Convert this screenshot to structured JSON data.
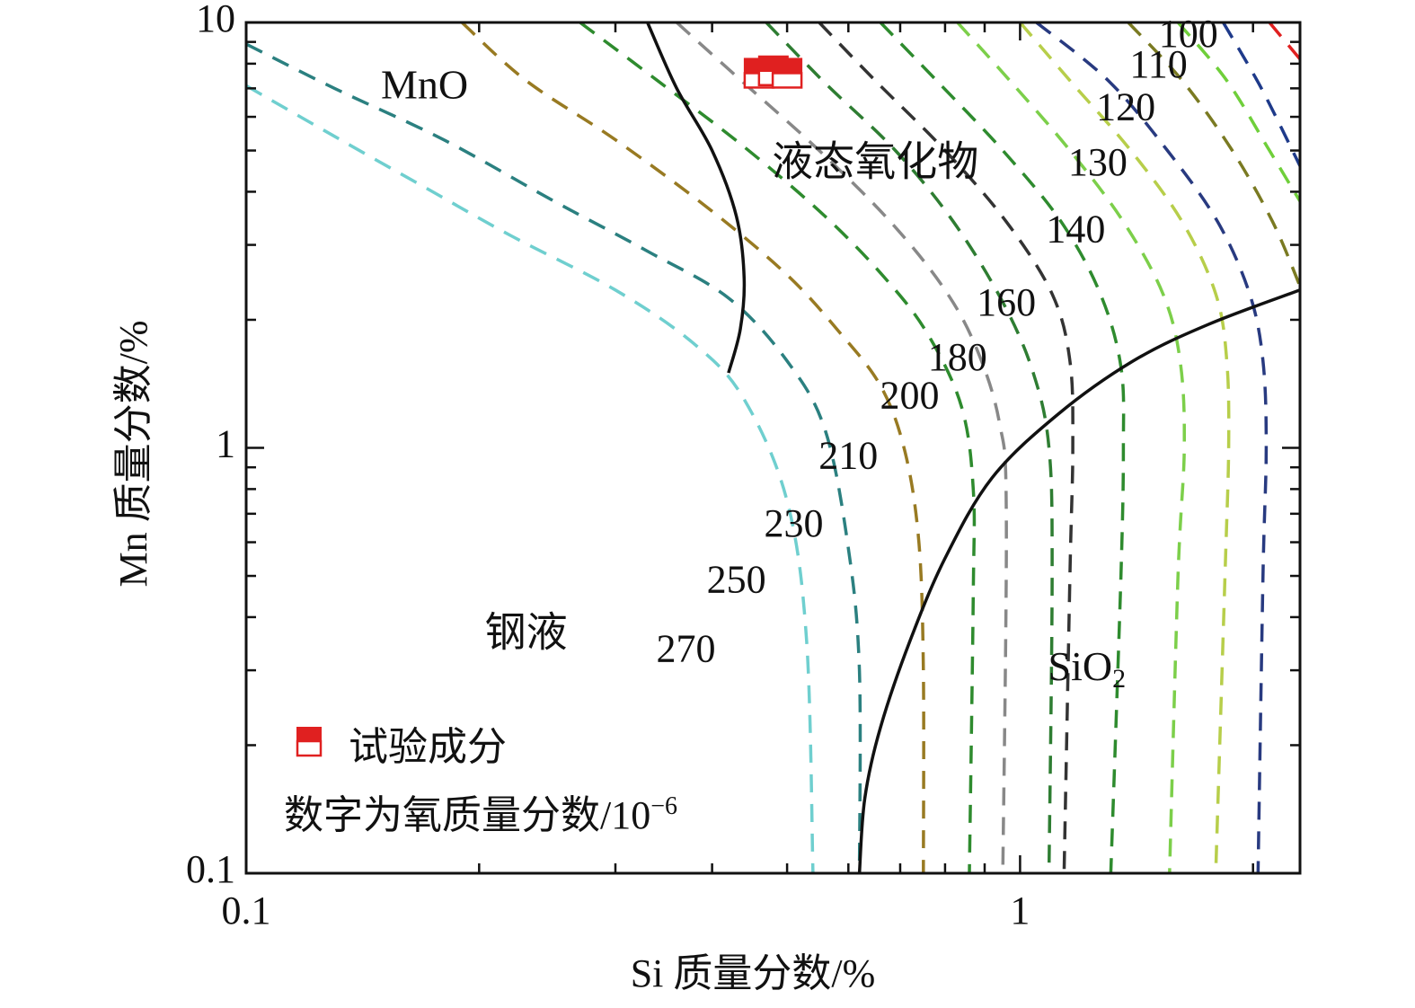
{
  "chart_data": {
    "type": "line",
    "xlabel": "Si 质量分数/%",
    "ylabel": "Mn 质量分数/%",
    "xscale": "log",
    "yscale": "log",
    "xlim": [
      0.1,
      2.3
    ],
    "ylim": [
      0.1,
      10
    ],
    "xticks": [
      {
        "value": 0.1,
        "label": "0.1"
      },
      {
        "value": 1,
        "label": "1"
      }
    ],
    "yticks": [
      {
        "value": 0.1,
        "label": "0.1"
      },
      {
        "value": 1,
        "label": "1"
      },
      {
        "value": 10,
        "label": "10"
      }
    ],
    "region_labels": [
      {
        "key": "mno",
        "text": "MnO",
        "x": 0.17,
        "y": 7.0
      },
      {
        "key": "liquid_oxide",
        "text": "液态氧化物",
        "x": 0.65,
        "y": 4.6
      },
      {
        "key": "steel",
        "text": "钢液",
        "x": 0.23,
        "y": 0.36
      },
      {
        "key": "sio2",
        "text": "SiO",
        "sub": "2",
        "x": 1.22,
        "y": 0.3
      }
    ],
    "boundaries": [
      {
        "key": "mno_liquid",
        "points": [
          [
            0.33,
            10
          ],
          [
            0.36,
            7
          ],
          [
            0.4,
            5
          ],
          [
            0.43,
            3.5
          ],
          [
            0.44,
            2.5
          ],
          [
            0.435,
            1.9
          ],
          [
            0.42,
            1.5
          ]
        ]
      },
      {
        "key": "liquid_sio2",
        "points": [
          [
            0.62,
            0.1
          ],
          [
            0.63,
            0.15
          ],
          [
            0.66,
            0.22
          ],
          [
            0.72,
            0.35
          ],
          [
            0.8,
            0.55
          ],
          [
            0.92,
            0.85
          ],
          [
            1.12,
            1.2
          ],
          [
            1.4,
            1.6
          ],
          [
            1.75,
            1.95
          ],
          [
            2.3,
            2.35
          ]
        ]
      }
    ],
    "series": [
      {
        "label": "270",
        "color": "#6fcfcf",
        "label_at": [
          0.37,
          0.33
        ],
        "points": [
          [
            0.1,
            7.1
          ],
          [
            0.13,
            5.4
          ],
          [
            0.17,
            4.1
          ],
          [
            0.22,
            3.15
          ],
          [
            0.3,
            2.35
          ],
          [
            0.38,
            1.75
          ],
          [
            0.44,
            1.3
          ],
          [
            0.5,
            0.75
          ],
          [
            0.53,
            0.35
          ],
          [
            0.54,
            0.1
          ]
        ]
      },
      {
        "label": "250",
        "color": "#2b8080",
        "label_at": [
          0.43,
          0.48
        ],
        "points": [
          [
            0.1,
            8.9
          ],
          [
            0.13,
            7.0
          ],
          [
            0.18,
            5.3
          ],
          [
            0.25,
            3.8
          ],
          [
            0.33,
            2.9
          ],
          [
            0.42,
            2.25
          ],
          [
            0.5,
            1.6
          ],
          [
            0.56,
            1.1
          ],
          [
            0.6,
            0.58
          ],
          [
            0.62,
            0.3
          ],
          [
            0.62,
            0.1
          ]
        ]
      },
      {
        "label": "230",
        "color": "#987a22",
        "label_at": [
          0.51,
          0.65
        ],
        "points": [
          [
            0.19,
            10
          ],
          [
            0.23,
            7.3
          ],
          [
            0.3,
            5.3
          ],
          [
            0.4,
            3.6
          ],
          [
            0.5,
            2.55
          ],
          [
            0.58,
            1.9
          ],
          [
            0.66,
            1.4
          ],
          [
            0.71,
            0.98
          ],
          [
            0.74,
            0.6
          ],
          [
            0.75,
            0.3
          ],
          [
            0.75,
            0.1
          ]
        ]
      },
      {
        "label": "210",
        "color": "#2e8b2e",
        "label_at": [
          0.6,
          0.94
        ],
        "points": [
          [
            0.27,
            10
          ],
          [
            0.34,
            7.3
          ],
          [
            0.44,
            5.1
          ],
          [
            0.56,
            3.5
          ],
          [
            0.67,
            2.5
          ],
          [
            0.76,
            1.85
          ],
          [
            0.84,
            1.25
          ],
          [
            0.87,
            0.8
          ],
          [
            0.87,
            0.45
          ],
          [
            0.86,
            0.1
          ]
        ]
      },
      {
        "label": "200",
        "color": "#888888",
        "label_at": [
          0.72,
          1.3
        ],
        "points": [
          [
            0.36,
            10
          ],
          [
            0.44,
            7.2
          ],
          [
            0.55,
            5.0
          ],
          [
            0.68,
            3.4
          ],
          [
            0.8,
            2.35
          ],
          [
            0.88,
            1.7
          ],
          [
            0.94,
            1.15
          ],
          [
            0.96,
            0.7
          ],
          [
            0.95,
            0.1
          ]
        ]
      },
      {
        "label": "180",
        "color": "#2e7d32",
        "label_at": [
          0.83,
          1.6
        ],
        "points": [
          [
            0.47,
            10
          ],
          [
            0.56,
            7.2
          ],
          [
            0.69,
            5.0
          ],
          [
            0.82,
            3.4
          ],
          [
            0.95,
            2.2
          ],
          [
            1.04,
            1.5
          ],
          [
            1.09,
            1.0
          ],
          [
            1.1,
            0.5
          ],
          [
            1.09,
            0.1
          ]
        ]
      },
      {
        "label": "160",
        "color": "#333333",
        "label_at": [
          0.96,
          2.15
        ],
        "points": [
          [
            0.55,
            10
          ],
          [
            0.65,
            7.3
          ],
          [
            0.8,
            5.0
          ],
          [
            0.96,
            3.4
          ],
          [
            1.1,
            2.3
          ],
          [
            1.16,
            1.6
          ],
          [
            1.17,
            1.0
          ],
          [
            1.16,
            0.5
          ],
          [
            1.14,
            0.1
          ]
        ]
      },
      {
        "label": "140",
        "color": "#2e8b2e",
        "label_at": [
          1.18,
          3.2
        ],
        "points": [
          [
            0.66,
            10
          ],
          [
            0.78,
            7.3
          ],
          [
            0.95,
            5.0
          ],
          [
            1.13,
            3.4
          ],
          [
            1.27,
            2.3
          ],
          [
            1.35,
            1.55
          ],
          [
            1.36,
            1.0
          ],
          [
            1.35,
            0.5
          ],
          [
            1.31,
            0.1
          ]
        ]
      },
      {
        "label": "130",
        "color": "#7ccf4a",
        "label_at": [
          1.26,
          4.6
        ],
        "points": [
          [
            0.83,
            10
          ],
          [
            0.97,
            7.3
          ],
          [
            1.16,
            5.0
          ],
          [
            1.36,
            3.4
          ],
          [
            1.53,
            2.3
          ],
          [
            1.61,
            1.6
          ],
          [
            1.63,
            1.0
          ],
          [
            1.6,
            0.5
          ],
          [
            1.56,
            0.1
          ]
        ]
      },
      {
        "label": "120",
        "color": "#b7ce4a",
        "label_at": [
          1.37,
          6.2
        ],
        "points": [
          [
            1.0,
            10
          ],
          [
            1.16,
            7.3
          ],
          [
            1.39,
            5.0
          ],
          [
            1.62,
            3.4
          ],
          [
            1.79,
            2.3
          ],
          [
            1.85,
            1.6
          ],
          [
            1.86,
            1.0
          ],
          [
            1.84,
            0.5
          ],
          [
            1.79,
            0.1
          ]
        ]
      },
      {
        "label": "110",
        "color": "#283a80",
        "label_at": [
          1.51,
          7.8
        ],
        "points": [
          [
            1.05,
            10
          ],
          [
            1.3,
            7.3
          ],
          [
            1.55,
            5.0
          ],
          [
            1.8,
            3.4
          ],
          [
            1.98,
            2.3
          ],
          [
            2.06,
            1.6
          ],
          [
            2.08,
            1.0
          ],
          [
            2.06,
            0.5
          ],
          [
            2.03,
            0.1
          ]
        ]
      },
      {
        "label": "100",
        "color": "#7a7a22",
        "label_at": [
          1.65,
          9.2
        ],
        "points": [
          [
            1.38,
            10
          ],
          [
            1.62,
            7.3
          ],
          [
            1.88,
            5.0
          ],
          [
            2.12,
            3.4
          ],
          [
            2.3,
            2.4
          ]
        ]
      },
      {
        "label": "",
        "color": "#6fcf3a",
        "label_at": null,
        "points": [
          [
            1.6,
            10
          ],
          [
            1.85,
            7.3
          ],
          [
            2.1,
            5.0
          ],
          [
            2.3,
            3.8
          ]
        ]
      },
      {
        "label": "",
        "color": "#1e3a8a",
        "label_at": null,
        "points": [
          [
            1.83,
            10
          ],
          [
            2.05,
            7.0
          ],
          [
            2.3,
            4.6
          ]
        ]
      },
      {
        "label": "",
        "color": "#e02020",
        "label_at": null,
        "points": [
          [
            2.1,
            10
          ],
          [
            2.3,
            8.2
          ]
        ]
      }
    ],
    "experimental_points": [
      {
        "x": 0.46,
        "y": 7.6
      },
      {
        "x": 0.48,
        "y": 7.7
      },
      {
        "x": 0.5,
        "y": 7.6
      }
    ],
    "legend": {
      "marker_label": "试验成分",
      "note": "数字为氧质量分数/10",
      "note_sup": "−6",
      "placement": "bottom-left"
    },
    "colors": {
      "experiment": "#e02020",
      "boundary": "#111111"
    }
  }
}
